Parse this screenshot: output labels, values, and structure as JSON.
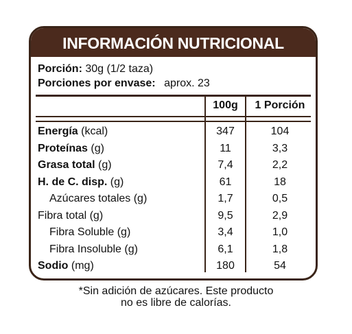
{
  "title": "INFORMACIÓN NUTRICIONAL",
  "serving": {
    "portion_label": "Porción:",
    "portion_value": "30g (1/2 taza)",
    "per_pack_label": "Porciones por envase:",
    "per_pack_value": "aprox. 23"
  },
  "columns": {
    "per100": "100g",
    "per_portion": "1 Porción"
  },
  "rows": [
    {
      "bold": "Energía",
      "rest": " (kcal)",
      "v100": "347",
      "vpor": "104"
    },
    {
      "bold": "Proteínas",
      "rest": " (g)",
      "v100": "11",
      "vpor": "3,3"
    },
    {
      "bold": "Grasa total",
      "rest": " (g)",
      "v100": "7,4",
      "vpor": "2,2"
    },
    {
      "bold": "H. de C. disp.",
      "rest": " (g)",
      "v100": "61",
      "vpor": "18"
    },
    {
      "bold": "",
      "rest": "Azúcares totales (g)",
      "v100": "1,7",
      "vpor": "0,5"
    },
    {
      "bold": "",
      "rest": "Fibra total (g)",
      "v100": "9,5",
      "vpor": "2,9"
    },
    {
      "bold": "",
      "rest": "Fibra Soluble (g)",
      "v100": "3,4",
      "vpor": "1,0"
    },
    {
      "bold": "",
      "rest": "Fibra Insoluble (g)",
      "v100": "6,1",
      "vpor": "1,8"
    },
    {
      "bold": "Sodio",
      "rest": " (mg)",
      "v100": "180",
      "vpor": "54"
    }
  ],
  "footnote": {
    "line1": "*Sin adición de azúcares. Este producto",
    "line2": "no es libre de calorías."
  }
}
